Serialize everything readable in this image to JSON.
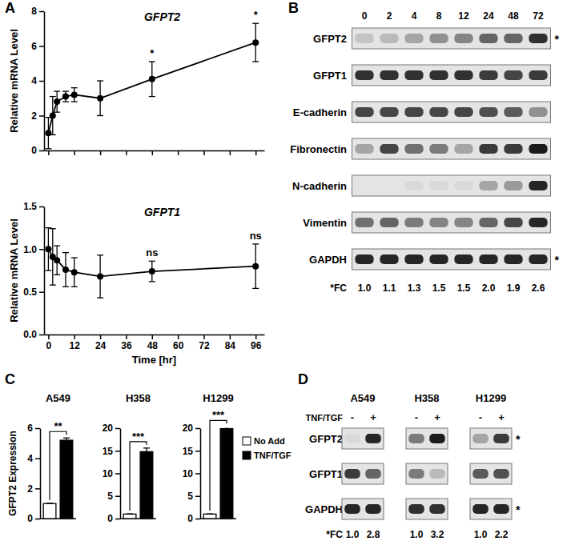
{
  "panel_labels": [
    "A",
    "B",
    "C",
    "D"
  ],
  "chart_data": [
    {
      "type": "line",
      "title": "GFPT2",
      "y_label": "Relative mRNA Level",
      "x": [
        0,
        2,
        4,
        8,
        12,
        24,
        48,
        96
      ],
      "series": [
        {
          "color": "#000000",
          "marker": "circle",
          "line_style": "solid",
          "values": [
            1.0,
            2.0,
            2.8,
            3.1,
            3.2,
            3.0,
            4.1,
            6.2
          ],
          "error": [
            0.9,
            1.1,
            0.6,
            0.3,
            0.4,
            1.0,
            1.0,
            1.1
          ]
        }
      ],
      "xlim": [
        -2,
        100
      ],
      "xticks": [
        0,
        12,
        24,
        36,
        48,
        60,
        72,
        84,
        96
      ],
      "ylim": [
        0,
        8
      ],
      "yticks": [
        0,
        2,
        4,
        6,
        8
      ],
      "tick_labels": "y",
      "annotations": [
        {
          "x": 48,
          "text": "*"
        },
        {
          "x": 96,
          "text": "*"
        }
      ]
    },
    {
      "type": "line",
      "title": "GFPT1",
      "y_label": "Relative mRNA Level",
      "x_label": "Time [hr]",
      "x": [
        0,
        2,
        4,
        8,
        12,
        24,
        48,
        96
      ],
      "series": [
        {
          "color": "#000000",
          "marker": "circle",
          "line_style": "solid",
          "values": [
            1.0,
            0.91,
            0.87,
            0.76,
            0.73,
            0.68,
            0.74,
            0.8
          ],
          "error": [
            0.25,
            0.33,
            0.17,
            0.2,
            0.17,
            0.25,
            0.12,
            0.26
          ]
        }
      ],
      "xlim": [
        -2,
        100
      ],
      "xticks": [
        0,
        12,
        24,
        36,
        48,
        60,
        72,
        84,
        96
      ],
      "ylim": [
        0,
        1.5
      ],
      "yticks": [
        {
          "value": 0,
          "label": "0.0"
        },
        {
          "value": 0.5,
          "label": "0.5"
        },
        {
          "value": 1.0,
          "label": "1.0"
        },
        {
          "value": 1.5,
          "label": "1.5"
        }
      ],
      "annotations": [
        {
          "x": 48,
          "text": "ns"
        },
        {
          "x": 96,
          "text": "ns"
        }
      ]
    },
    {
      "type": "bar",
      "title": "A549",
      "y_label": "GFPT2 Expression",
      "series": [
        {
          "color": "#ffffff",
          "values": [
            1.0
          ],
          "error": [
            0.02
          ]
        },
        {
          "color": "#000000",
          "values": [
            5.2
          ],
          "error": [
            0.15
          ]
        }
      ],
      "ylim": [
        0,
        6
      ],
      "yticks": [
        0,
        2,
        4,
        6
      ],
      "annotation": "**"
    },
    {
      "type": "bar",
      "title": "H358",
      "series": [
        {
          "color": "#ffffff",
          "values": [
            1.0
          ],
          "error": [
            0.05
          ]
        },
        {
          "color": "#000000",
          "values": [
            14.8
          ],
          "error": [
            0.8
          ]
        }
      ],
      "ylim": [
        0,
        20
      ],
      "yticks": [
        0,
        5,
        10,
        15,
        20
      ],
      "annotation": "***"
    },
    {
      "type": "bar",
      "title": "H1299",
      "legend": "right",
      "series": [
        {
          "name": "No Add",
          "color": "#ffffff",
          "values": [
            1.0
          ],
          "error": [
            0.05
          ]
        },
        {
          "name": "TNF/TGF",
          "color": "#000000",
          "values": [
            19.9
          ],
          "error": [
            0.4
          ]
        }
      ],
      "ylim": [
        0,
        20
      ],
      "yticks": [
        0,
        5,
        10,
        15,
        20
      ],
      "annotation": "***"
    }
  ],
  "time_course_blot": {
    "lanes": [
      0,
      2,
      4,
      8,
      12,
      24,
      48,
      72
    ],
    "rows": [
      {
        "label": "GFPT2",
        "mark": "*",
        "intensity": [
          0.15,
          0.2,
          0.3,
          0.4,
          0.45,
          0.6,
          0.6,
          0.85
        ]
      },
      {
        "label": "GFPT1",
        "intensity": [
          0.85,
          0.85,
          0.85,
          0.85,
          0.85,
          0.8,
          0.75,
          0.8
        ]
      },
      {
        "label": "E-cadherin",
        "intensity": [
          0.75,
          0.75,
          0.75,
          0.75,
          0.75,
          0.7,
          0.65,
          0.4
        ]
      },
      {
        "label": "Fibronectin",
        "intensity": [
          0.3,
          0.75,
          0.55,
          0.5,
          0.3,
          0.8,
          0.8,
          0.95
        ]
      },
      {
        "label": "N-cadherin",
        "intensity": [
          0,
          0,
          0.05,
          0.05,
          0.05,
          0.3,
          0.35,
          0.9
        ]
      },
      {
        "label": "Vimentin",
        "intensity": [
          0.55,
          0.6,
          0.5,
          0.45,
          0.45,
          0.6,
          0.75,
          0.9
        ]
      },
      {
        "label": "GAPDH",
        "mark": "*",
        "intensity": [
          0.9,
          0.9,
          0.9,
          0.9,
          0.9,
          0.9,
          0.9,
          0.9
        ]
      }
    ],
    "fc_label": "*FC",
    "fc": {
      "values": [
        1.0,
        1.1,
        1.3,
        1.5,
        1.5,
        2.0,
        1.9,
        2.6
      ],
      "value_labels": [
        "1.0",
        "1.1",
        "1.3",
        "1.5",
        "1.5",
        "2.0",
        "1.9",
        "2.6"
      ]
    }
  },
  "cell_line_blot": {
    "treatment_label": "TNF/TGF",
    "rows": [
      {
        "label": "GFPT2",
        "mark": "*"
      },
      {
        "label": "GFPT1"
      },
      {
        "label": "GAPDH",
        "mark": "*"
      }
    ],
    "fc_label": "*FC",
    "groups": [
      {
        "title": "A549",
        "lanes": [
          "-",
          "+"
        ],
        "intensity": [
          [
            0.05,
            0.9
          ],
          [
            0.8,
            0.6
          ],
          [
            0.9,
            0.9
          ]
        ],
        "fc": {
          "values": [
            1.0,
            2.8
          ],
          "value_labels": [
            "1.0",
            "2.8"
          ]
        }
      },
      {
        "title": "H358",
        "lanes": [
          "-",
          "+"
        ],
        "intensity": [
          [
            0.5,
            0.95
          ],
          [
            0.5,
            0.2
          ],
          [
            0.85,
            0.85
          ]
        ],
        "fc": {
          "values": [
            1.0,
            3.2
          ],
          "value_labels": [
            "1.0",
            "3.2"
          ]
        }
      },
      {
        "title": "H1299",
        "lanes": [
          "-",
          "+"
        ],
        "intensity": [
          [
            0.3,
            0.8
          ],
          [
            0.65,
            0.7
          ],
          [
            0.9,
            0.9
          ]
        ],
        "fc": {
          "values": [
            1.0,
            2.2
          ],
          "value_labels": [
            "1.0",
            "2.2"
          ]
        }
      }
    ]
  }
}
